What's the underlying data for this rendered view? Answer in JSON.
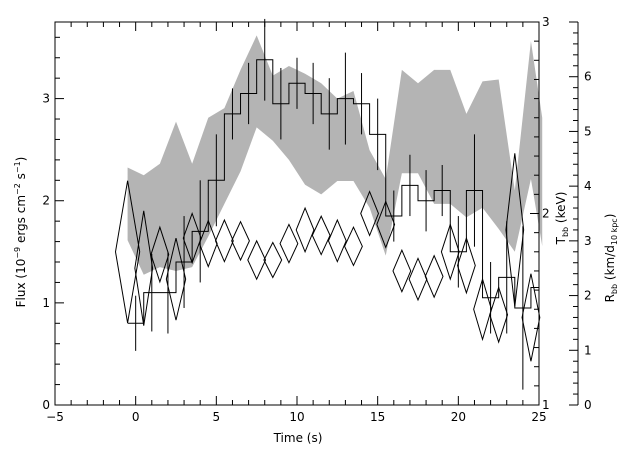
{
  "chart_data": {
    "type": "line",
    "title": "",
    "xlabel": "Time (s)",
    "ylabel": {
      "prefix": "Flux (10",
      "exp1": "−9",
      "mid1": " ergs cm",
      "exp2": "−2",
      "mid2": " s",
      "exp3": "−1",
      "suffix": ")"
    },
    "y2label": {
      "main": "T",
      "sub": "bb",
      "suffix": " (keV)"
    },
    "y3label": {
      "main": "R",
      "sub": "bb",
      "mid": " (km/d",
      "sub2": "10 kpc",
      "suffix": ")"
    },
    "xlim": [
      -5,
      25
    ],
    "ylim": [
      0,
      3.75
    ],
    "y2lim": [
      1,
      3
    ],
    "y3lim": [
      0,
      7
    ],
    "x_ticks": [
      -5,
      0,
      5,
      10,
      15,
      20,
      25
    ],
    "y_ticks": [
      0,
      1,
      2,
      3
    ],
    "y2_ticks": [
      1,
      2,
      3
    ],
    "y3_ticks": [
      0,
      1,
      2,
      3,
      4,
      5,
      6
    ],
    "bin_width": 1.0,
    "series": [
      {
        "kind": "flux-histogram",
        "points": [
          [
            0,
            0.8,
            0.27
          ],
          [
            1,
            1.1,
            0.38
          ],
          [
            2,
            1.1,
            0.4
          ],
          [
            3,
            1.4,
            0.45
          ],
          [
            4,
            1.7,
            0.5
          ],
          [
            5,
            2.2,
            0.45
          ],
          [
            6,
            2.85,
            0.25
          ],
          [
            7,
            3.05,
            0.3
          ],
          [
            8,
            3.38,
            0.4
          ],
          [
            9,
            2.95,
            0.35
          ],
          [
            10,
            3.15,
            0.25
          ],
          [
            11,
            3.05,
            0.3
          ],
          [
            12,
            2.85,
            0.35
          ],
          [
            13,
            3.0,
            0.45
          ],
          [
            14,
            2.95,
            0.3
          ],
          [
            15,
            2.65,
            0.35
          ],
          [
            16,
            1.85,
            0.25
          ],
          [
            17,
            2.15,
            0.3
          ],
          [
            18,
            2.0,
            0.3
          ],
          [
            19,
            2.1,
            0.25
          ],
          [
            20,
            1.5,
            0.35
          ],
          [
            21,
            2.1,
            0.55
          ],
          [
            22,
            1.05,
            0.35
          ],
          [
            23,
            1.25,
            0.55
          ],
          [
            24,
            0.95,
            0.8
          ],
          [
            25,
            1.15,
            0.55
          ]
        ]
      },
      {
        "kind": "temperature-band",
        "x": [
          -0.5,
          0.5,
          1.5,
          2.5,
          3.5,
          4.5,
          5.5,
          6.5,
          7.5,
          8.5,
          9.5,
          10.5,
          11.5,
          12.5,
          13.5,
          14.5,
          15.5,
          16.5,
          17.5,
          18.5,
          19.5,
          20.5,
          21.5,
          22.5,
          23.5,
          24.5,
          25.2
        ],
        "upper": [
          2.24,
          2.2,
          2.26,
          2.48,
          2.26,
          2.5,
          2.55,
          2.75,
          2.93,
          2.72,
          2.77,
          2.73,
          2.68,
          2.6,
          2.64,
          2.33,
          2.18,
          2.75,
          2.68,
          2.75,
          2.75,
          2.52,
          2.69,
          2.7,
          2.12,
          2.9,
          2.5
        ],
        "lower": [
          1.86,
          1.68,
          1.72,
          1.7,
          1.72,
          1.88,
          2.05,
          2.22,
          2.45,
          2.38,
          2.28,
          2.15,
          2.1,
          2.17,
          2.17,
          2.03,
          1.78,
          2.21,
          2.21,
          2.05,
          2.05,
          1.98,
          2.03,
          1.92,
          1.8,
          2.18,
          1.83
        ]
      },
      {
        "kind": "radius-diamonds",
        "points": [
          [
            -0.5,
            2.8,
            0.75,
            1.3
          ],
          [
            0.5,
            2.5,
            0.55,
            1.05
          ],
          [
            1.5,
            2.75,
            0.55,
            0.5
          ],
          [
            2.5,
            2.3,
            0.6,
            0.75
          ],
          [
            3.5,
            3.05,
            0.55,
            0.45
          ],
          [
            4.5,
            2.95,
            0.55,
            0.42
          ],
          [
            5.5,
            3.0,
            0.55,
            0.38
          ],
          [
            6.5,
            3.0,
            0.55,
            0.35
          ],
          [
            7.5,
            2.65,
            0.55,
            0.35
          ],
          [
            8.5,
            2.65,
            0.55,
            0.32
          ],
          [
            9.5,
            2.95,
            0.55,
            0.35
          ],
          [
            10.5,
            3.2,
            0.55,
            0.4
          ],
          [
            11.5,
            3.1,
            0.55,
            0.35
          ],
          [
            12.5,
            3.0,
            0.55,
            0.38
          ],
          [
            13.5,
            2.9,
            0.55,
            0.35
          ],
          [
            14.5,
            3.5,
            0.55,
            0.4
          ],
          [
            15.5,
            3.3,
            0.55,
            0.42
          ],
          [
            16.5,
            2.45,
            0.55,
            0.38
          ],
          [
            17.5,
            2.3,
            0.55,
            0.38
          ],
          [
            18.5,
            2.35,
            0.55,
            0.38
          ],
          [
            19.5,
            2.8,
            0.55,
            0.5
          ],
          [
            20.5,
            2.55,
            0.55,
            0.5
          ],
          [
            21.5,
            1.75,
            0.55,
            0.55
          ],
          [
            22.5,
            1.65,
            0.55,
            0.5
          ],
          [
            23.5,
            3.2,
            0.55,
            1.4
          ],
          [
            24.5,
            1.6,
            0.55,
            0.8
          ]
        ]
      }
    ],
    "grid": false,
    "legend": "none"
  }
}
